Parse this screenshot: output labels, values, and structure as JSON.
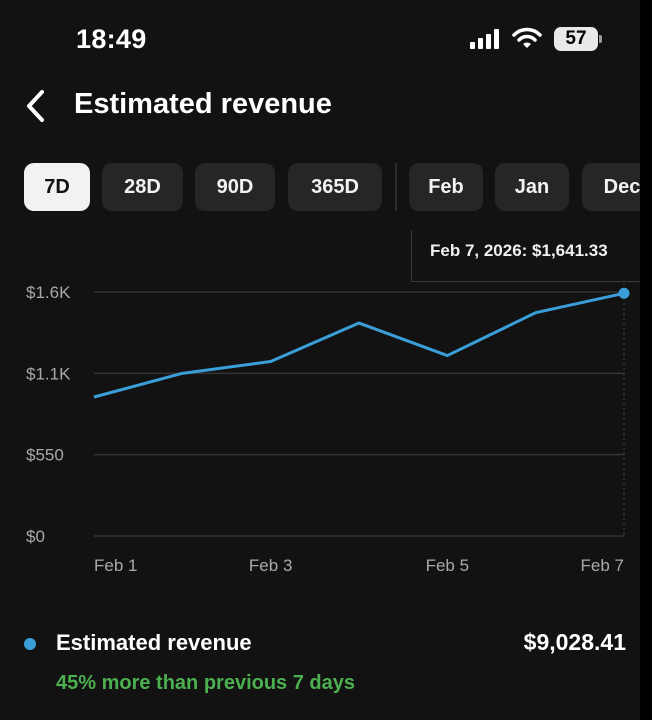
{
  "status_bar": {
    "time": "18:49",
    "battery": "57"
  },
  "header": {
    "title": "Estimated revenue"
  },
  "ranges": [
    {
      "label": "7D",
      "active": true
    },
    {
      "label": "28D",
      "active": false
    },
    {
      "label": "90D",
      "active": false
    },
    {
      "label": "365D",
      "active": false
    },
    {
      "label": "Feb",
      "active": false
    },
    {
      "label": "Jan",
      "active": false
    },
    {
      "label": "Dec",
      "active": false
    }
  ],
  "tooltip": "Feb 7, 2026: $1,641.33",
  "colors": {
    "accent": "#3a9fd8",
    "positive": "#4caf50",
    "background": "#121212"
  },
  "chart_data": {
    "type": "line",
    "x": [
      "Feb 1",
      "Feb 2",
      "Feb 3",
      "Feb 4",
      "Feb 5",
      "Feb 6",
      "Feb 7"
    ],
    "x_tick_labels": [
      "Feb 1",
      "Feb 3",
      "Feb 5",
      "Feb 7"
    ],
    "series": [
      {
        "values": [
          940,
          1100,
          1180,
          1440,
          1220,
          1510,
          1641.33
        ]
      }
    ],
    "y_tick_labels": [
      "$1.6K",
      "$1.1K",
      "$550",
      "$0"
    ],
    "y_ticks": [
      1650,
      1100,
      550,
      0
    ],
    "ylim": [
      0,
      1650
    ],
    "grid": true,
    "highlight": {
      "x": "Feb 7",
      "y": 1641.33
    }
  },
  "legend": {
    "label": "Estimated revenue",
    "total": "$9,028.41",
    "comparison": "45% more than previous 7 days"
  }
}
